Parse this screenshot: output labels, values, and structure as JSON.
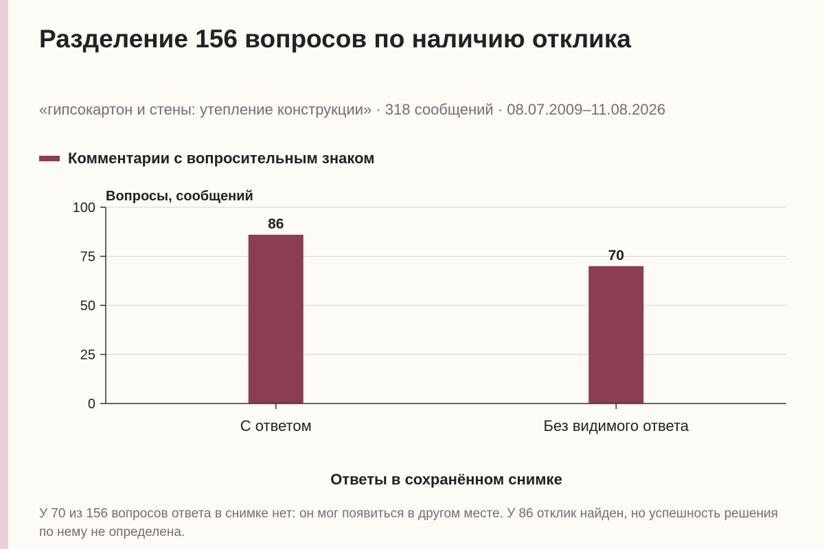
{
  "title": "Разделение 156 вопросов по наличию отклика",
  "subtitle": "«гипсокартон и стены: утепление конструкции» · 318 сообщений · 08.07.2009–11.08.2026",
  "note": "У 70 из 156 вопросов ответа в снимке нет: он мог появиться в другом месте. У 86 отклик найден, но успешность решения по нему не определена.",
  "colors": {
    "bar": "#8b3d52",
    "background": "#fdfbf5",
    "side_strip": "#ebcfd6",
    "muted_text": "#7d6a72"
  },
  "chart_data": {
    "type": "bar",
    "categories": [
      "С ответом",
      "Без видимого ответа"
    ],
    "series": [
      {
        "name": "Комментарии с вопросительным знаком",
        "values": [
          86,
          70
        ]
      }
    ],
    "xlabel": "Ответы в сохранённом снимке",
    "ylabel": "Вопросы, сообщений",
    "ylim": [
      0,
      100
    ],
    "yticks": [
      0,
      25,
      50,
      75,
      100
    ],
    "data_labels": [
      "86",
      "70"
    ],
    "grid": true,
    "legend_position": "top-left"
  }
}
